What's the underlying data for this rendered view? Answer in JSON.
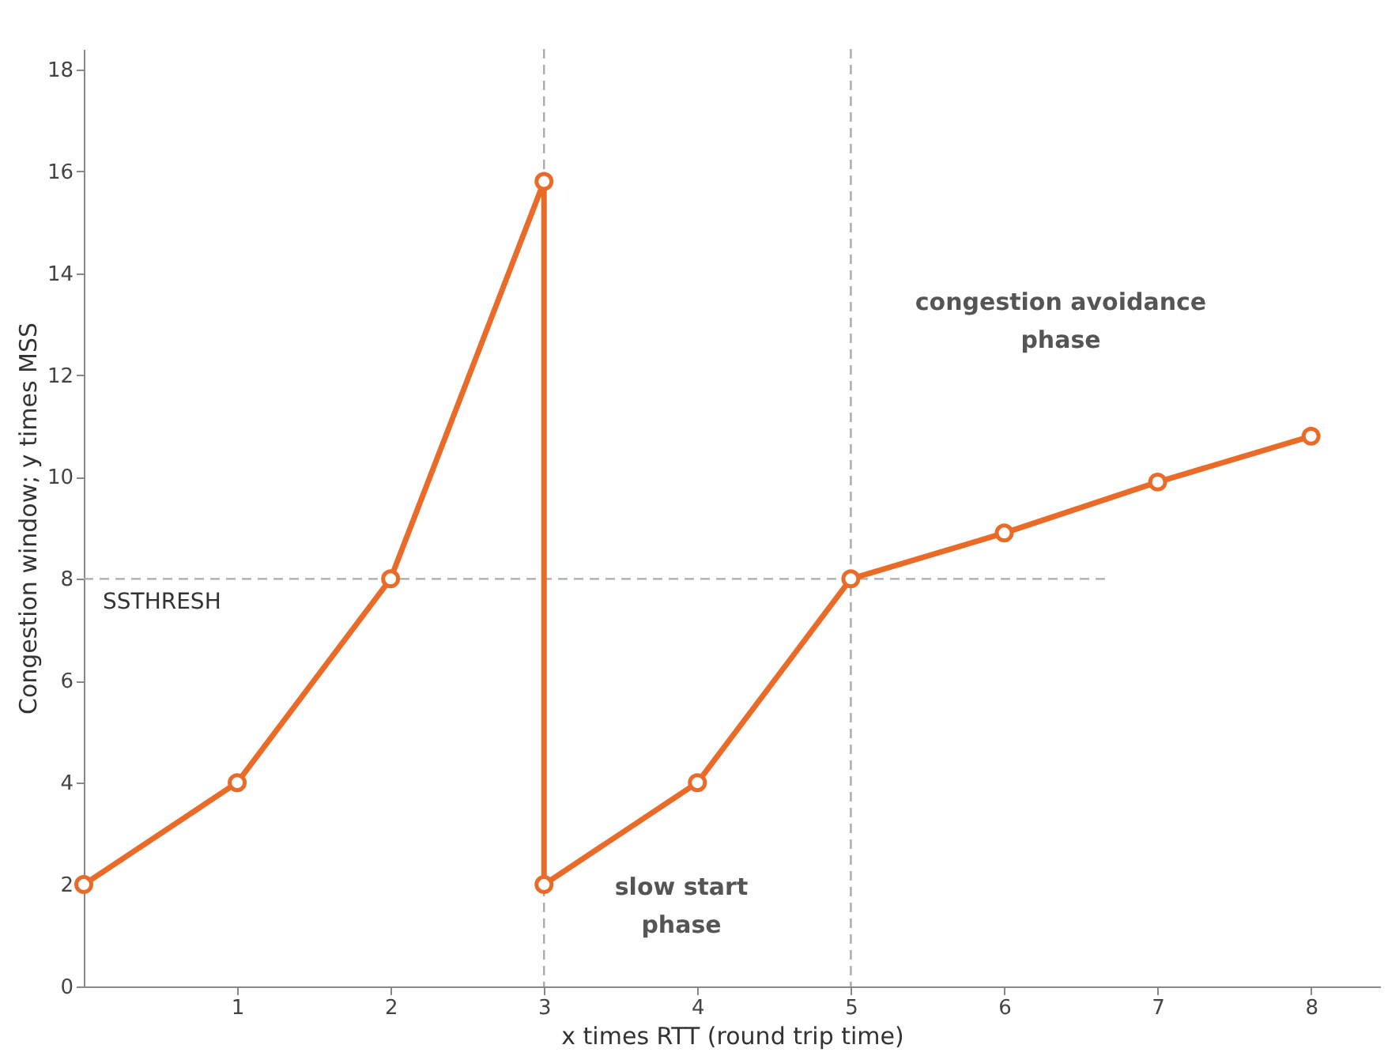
{
  "chart_data": {
    "type": "line",
    "xlabel": "x times RTT (round trip time)",
    "ylabel": "Congestion window; y times MSS",
    "series": [
      {
        "color": "#ea6a28",
        "x": [
          0,
          1,
          2,
          3,
          3,
          4,
          5,
          6,
          7,
          8
        ],
        "values": [
          2,
          4,
          8,
          15.8,
          2,
          4,
          8,
          8.9,
          9.9,
          10.8
        ]
      }
    ],
    "xlim": [
      0,
      8.45
    ],
    "xticks": [
      1,
      2,
      3,
      4,
      5,
      6,
      7,
      8
    ],
    "ylim": [
      0,
      18.4
    ],
    "yticks": [
      0,
      2,
      4,
      6,
      8,
      10,
      12,
      14,
      16,
      18
    ],
    "marker": "circle",
    "line_style": "solid",
    "ref_lines": [
      {
        "axis": "y",
        "value": 8,
        "label": "SSTHRESH",
        "color": "#aaaaaa",
        "line_style": "dashed"
      },
      {
        "axis": "x",
        "value": 3,
        "color": "#aaaaaa",
        "line_style": "dashed"
      },
      {
        "axis": "x",
        "value": 5,
        "color": "#aaaaaa",
        "line_style": "dashed"
      }
    ],
    "annotations": [
      "slow start phase",
      "congestion avoidance phase"
    ]
  }
}
